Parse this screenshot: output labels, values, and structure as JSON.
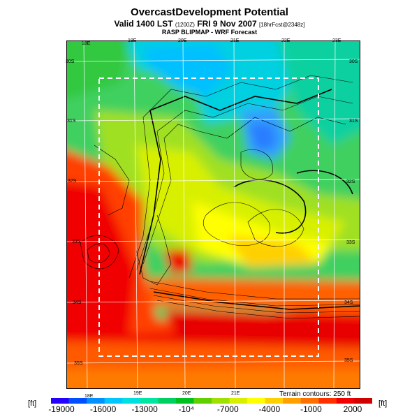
{
  "title": "OvercastDevelopment Potential",
  "subtitle": {
    "prefix": "Valid 1400 LST",
    "utc": "(1200Z)",
    "date": "FRI 9 Nov 2007",
    "fcst": "[18hrFcst@2348z]"
  },
  "source": "RASP BLIPMAP - WRF Forecast",
  "lon_labels_top": [
    "18E",
    "19E",
    "20E",
    "21E",
    "22E",
    "23E"
  ],
  "lon_labels_bottom": [
    "18E",
    "19E",
    "20E",
    "21E"
  ],
  "lat_labels_left": [
    "30S",
    "31S",
    "32S",
    "33S",
    "34S",
    "35S"
  ],
  "lat_labels_right": [
    "30S",
    "31S",
    "32S",
    "33S",
    "34S",
    "35S"
  ],
  "terrain_note": "Terrain contours: 250 ft",
  "unit": "[ft]",
  "colorbar": {
    "ticks": [
      "-19000",
      "-16000",
      "-13000",
      "-10⁴",
      "-7000",
      "-4000",
      "-1000",
      "2000"
    ],
    "colors": [
      "#2600ff",
      "#0050ff",
      "#0090ff",
      "#00c8ff",
      "#00e0e0",
      "#00e6a0",
      "#00d060",
      "#00c020",
      "#60d000",
      "#a0e000",
      "#d8f000",
      "#ffff00",
      "#ffd000",
      "#ffa000",
      "#ff7000",
      "#ff3000",
      "#f00000",
      "#d00000"
    ]
  }
}
